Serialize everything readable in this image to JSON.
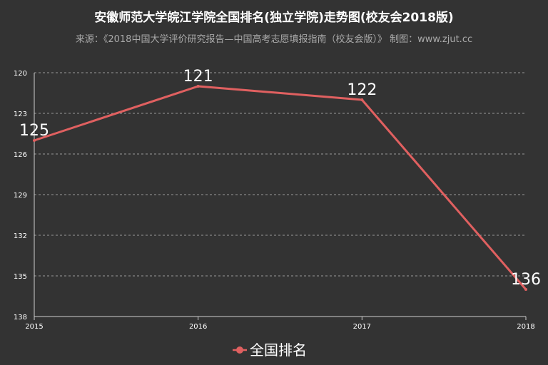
{
  "chart_data": {
    "type": "line",
    "title": "安徽师范大学皖江学院全国排名(独立学院)走势图(校友会2018版)",
    "subtitle": "来源：《2018中国大学评价研究报告—中国高考志愿填报指南（校友会版）》 制图：www.zjut.cc",
    "categories": [
      "2015",
      "2016",
      "2017",
      "2018"
    ],
    "series": [
      {
        "name": "全国排名",
        "values": [
          125,
          121,
          122,
          136
        ],
        "color": "#e06060"
      }
    ],
    "y_ticks": [
      "120",
      "123",
      "126",
      "129",
      "132",
      "135",
      "138"
    ],
    "ylim": [
      120,
      138
    ],
    "y_inverted": true,
    "grid": true,
    "legend_position": "bottom-center"
  }
}
